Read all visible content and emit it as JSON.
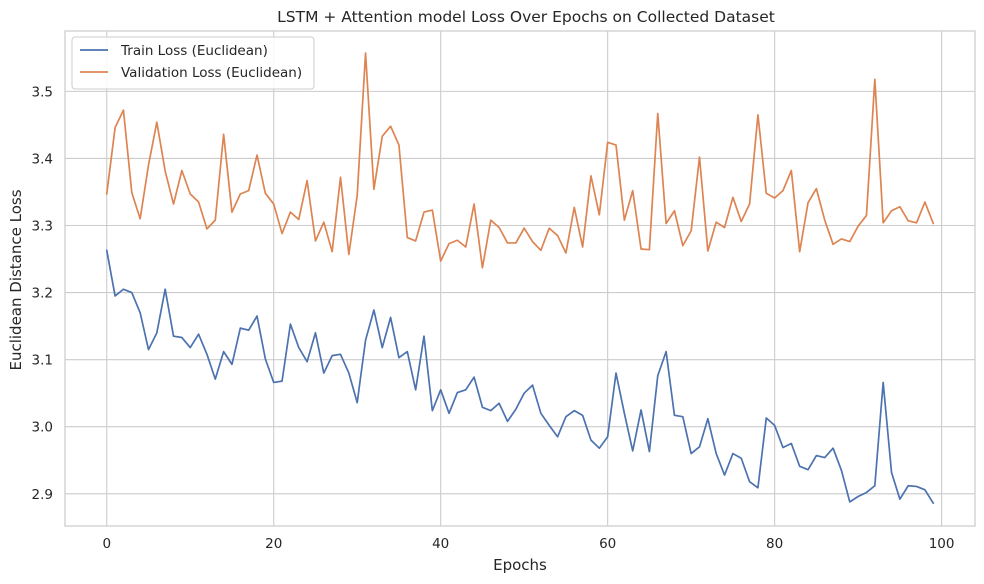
{
  "chart_data": {
    "type": "line",
    "title": "LSTM + Attention model Loss Over Epochs on Collected Dataset",
    "xlabel": "Epochs",
    "ylabel": "Euclidean Distance Loss",
    "xlim": [
      -5,
      104
    ],
    "ylim": [
      2.852,
      3.59
    ],
    "xticks": [
      0,
      20,
      40,
      60,
      80,
      100
    ],
    "yticks": [
      2.9,
      3.0,
      3.1,
      3.2,
      3.3,
      3.4,
      3.5
    ],
    "xtick_labels": [
      "0",
      "20",
      "40",
      "60",
      "80",
      "100"
    ],
    "ytick_labels": [
      "2.9",
      "3.0",
      "3.1",
      "3.2",
      "3.3",
      "3.4",
      "3.5"
    ],
    "grid": true,
    "legend_position": "upper-left",
    "x": [
      0,
      1,
      2,
      3,
      4,
      5,
      6,
      7,
      8,
      9,
      10,
      11,
      12,
      13,
      14,
      15,
      16,
      17,
      18,
      19,
      20,
      21,
      22,
      23,
      24,
      25,
      26,
      27,
      28,
      29,
      30,
      31,
      32,
      33,
      34,
      35,
      36,
      37,
      38,
      39,
      40,
      41,
      42,
      43,
      44,
      45,
      46,
      47,
      48,
      49,
      50,
      51,
      52,
      53,
      54,
      55,
      56,
      57,
      58,
      59,
      60,
      61,
      62,
      63,
      64,
      65,
      66,
      67,
      68,
      69,
      70,
      71,
      72,
      73,
      74,
      75,
      76,
      77,
      78,
      79,
      80,
      81,
      82,
      83,
      84,
      85,
      86,
      87,
      88,
      89,
      90,
      91,
      92,
      93,
      94,
      95,
      96,
      97,
      98,
      99
    ],
    "series": [
      {
        "name": "Train Loss (Euclidean)",
        "color": "#4c72b0",
        "values": [
          3.263,
          3.195,
          3.205,
          3.2,
          3.17,
          3.115,
          3.14,
          3.205,
          3.135,
          3.133,
          3.118,
          3.138,
          3.108,
          3.071,
          3.112,
          3.093,
          3.147,
          3.144,
          3.165,
          3.101,
          3.066,
          3.068,
          3.153,
          3.118,
          3.097,
          3.14,
          3.08,
          3.106,
          3.108,
          3.08,
          3.036,
          3.129,
          3.174,
          3.118,
          3.163,
          3.103,
          3.112,
          3.055,
          3.135,
          3.024,
          3.055,
          3.02,
          3.051,
          3.055,
          3.074,
          3.029,
          3.024,
          3.035,
          3.008,
          3.026,
          3.05,
          3.062,
          3.02,
          3.002,
          2.985,
          3.015,
          3.024,
          3.017,
          2.98,
          2.968,
          2.985,
          3.08,
          3.02,
          2.964,
          3.025,
          2.963,
          3.076,
          3.112,
          3.017,
          3.015,
          2.96,
          2.97,
          3.012,
          2.96,
          2.928,
          2.96,
          2.953,
          2.918,
          2.909,
          3.013,
          3.002,
          2.969,
          2.975,
          2.941,
          2.936,
          2.957,
          2.954,
          2.968,
          2.935,
          2.888,
          2.896,
          2.902,
          2.912,
          3.066,
          2.932,
          2.892,
          2.912,
          2.911,
          2.906,
          2.886
        ]
      },
      {
        "name": "Validation Loss (Euclidean)",
        "color": "#dd8452",
        "values": [
          3.347,
          3.446,
          3.472,
          3.349,
          3.31,
          3.39,
          3.454,
          3.381,
          3.332,
          3.382,
          3.347,
          3.335,
          3.295,
          3.308,
          3.436,
          3.32,
          3.347,
          3.352,
          3.405,
          3.348,
          3.332,
          3.288,
          3.32,
          3.309,
          3.367,
          3.277,
          3.305,
          3.261,
          3.372,
          3.257,
          3.345,
          3.557,
          3.354,
          3.433,
          3.448,
          3.42,
          3.282,
          3.277,
          3.32,
          3.323,
          3.247,
          3.273,
          3.278,
          3.268,
          3.332,
          3.237,
          3.308,
          3.297,
          3.274,
          3.274,
          3.296,
          3.276,
          3.263,
          3.296,
          3.285,
          3.259,
          3.327,
          3.268,
          3.374,
          3.316,
          3.424,
          3.42,
          3.308,
          3.352,
          3.265,
          3.264,
          3.467,
          3.303,
          3.322,
          3.27,
          3.292,
          3.402,
          3.262,
          3.305,
          3.297,
          3.342,
          3.306,
          3.332,
          3.465,
          3.348,
          3.341,
          3.352,
          3.382,
          3.261,
          3.334,
          3.355,
          3.308,
          3.272,
          3.28,
          3.276,
          3.299,
          3.315,
          3.518,
          3.304,
          3.322,
          3.328,
          3.307,
          3.304,
          3.335,
          3.303
        ]
      }
    ]
  }
}
